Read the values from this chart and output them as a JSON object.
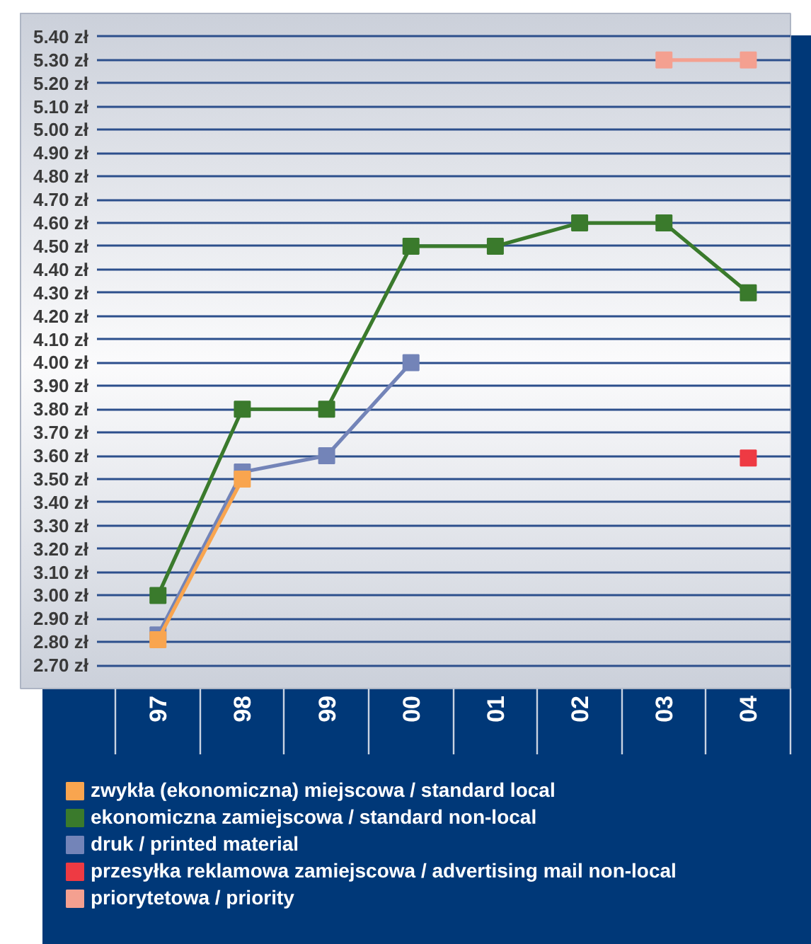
{
  "chart_data": {
    "type": "line",
    "categories": [
      "97",
      "98",
      "99",
      "00",
      "01",
      "02",
      "03",
      "04"
    ],
    "series": [
      {
        "name": "zwykła (ekonomiczna) miejscowa / standard local",
        "color": "#f9a54f",
        "values": [
          2.81,
          3.5,
          null,
          null,
          null,
          null,
          null,
          null
        ]
      },
      {
        "name": "ekonomiczna zamiejscowa / standard non-local",
        "color": "#3a7a2c",
        "values": [
          3.0,
          3.8,
          3.8,
          4.5,
          4.5,
          4.6,
          4.6,
          4.3
        ]
      },
      {
        "name": "druk / printed material",
        "color": "#7384b8",
        "values": [
          2.83,
          3.53,
          3.6,
          4.0,
          null,
          null,
          null,
          null
        ]
      },
      {
        "name": "przesyłka reklamowa zamiejscowa / advertising mail non-local",
        "color": "#ee3a43",
        "values": [
          null,
          null,
          null,
          null,
          null,
          null,
          null,
          3.59
        ]
      },
      {
        "name": "priorytetowa / priority",
        "color": "#f4a090",
        "values": [
          null,
          null,
          null,
          null,
          null,
          null,
          5.3,
          5.3
        ]
      }
    ],
    "ylim": [
      2.6,
      5.5
    ],
    "yticks": [
      {
        "value": 2.7,
        "label": "2.70 zł"
      },
      {
        "value": 2.8,
        "label": "2.80 zł"
      },
      {
        "value": 2.9,
        "label": "2.90 zł"
      },
      {
        "value": 3.0,
        "label": "3.00 zł"
      },
      {
        "value": 3.1,
        "label": "3.10 zł"
      },
      {
        "value": 3.2,
        "label": "3.20 zł"
      },
      {
        "value": 3.3,
        "label": "3.30 zł"
      },
      {
        "value": 3.4,
        "label": "3.40 zł"
      },
      {
        "value": 3.5,
        "label": "3.50 zł"
      },
      {
        "value": 3.6,
        "label": "3.60 zł"
      },
      {
        "value": 3.7,
        "label": "3.70 zł"
      },
      {
        "value": 3.8,
        "label": "3.80 zł"
      },
      {
        "value": 3.9,
        "label": "3.90 zł"
      },
      {
        "value": 4.0,
        "label": "4.00 zł"
      },
      {
        "value": 4.1,
        "label": "4.10 zł"
      },
      {
        "value": 4.2,
        "label": "4.20 zł"
      },
      {
        "value": 4.3,
        "label": "4.30 zł"
      },
      {
        "value": 4.4,
        "label": "4.40 zł"
      },
      {
        "value": 4.5,
        "label": "4.50 zł"
      },
      {
        "value": 4.6,
        "label": "4.60 zł"
      },
      {
        "value": 4.7,
        "label": "4.70 zł"
      },
      {
        "value": 4.8,
        "label": "4.80 zł"
      },
      {
        "value": 4.9,
        "label": "4.90 zł"
      },
      {
        "value": 5.0,
        "label": "5.00 zł"
      },
      {
        "value": 5.1,
        "label": "5.10 zł"
      },
      {
        "value": 5.2,
        "label": "5.20 zł"
      },
      {
        "value": 5.3,
        "label": "5.30 zł"
      },
      {
        "value": 5.4,
        "label": "5.40 zł"
      }
    ],
    "grid": "y",
    "legend": "bottom",
    "marker": "square",
    "line_style": "solid"
  }
}
